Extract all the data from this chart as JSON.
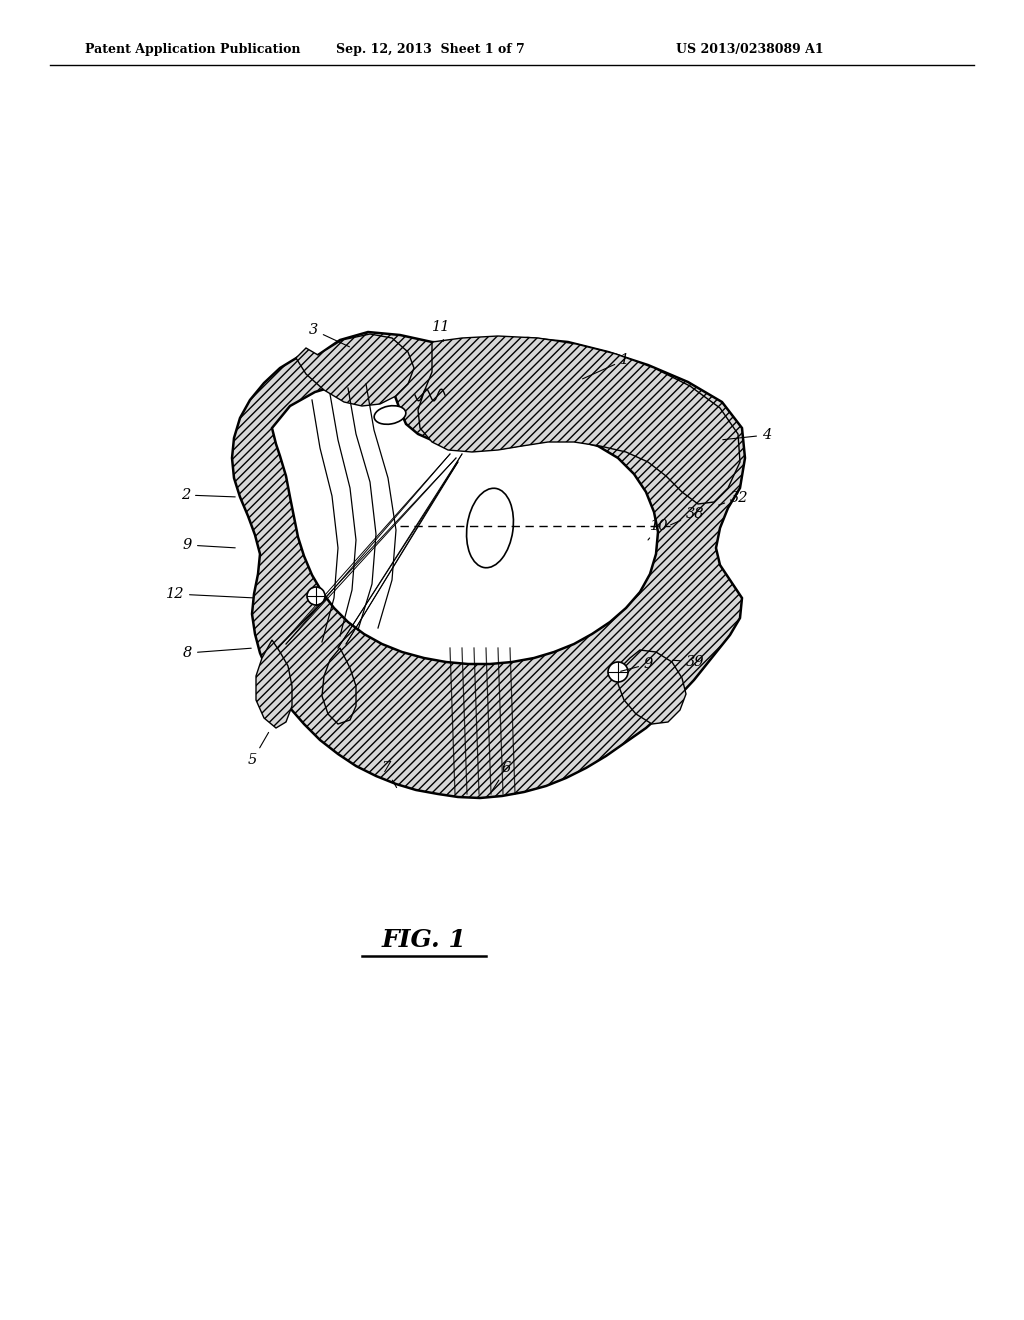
{
  "header_left": "Patent Application Publication",
  "header_mid": "Sep. 12, 2013  Sheet 1 of 7",
  "header_right": "US 2013/0238089 A1",
  "figure_label": "FIG. 1",
  "background_color": "#ffffff",
  "line_color": "#000000"
}
